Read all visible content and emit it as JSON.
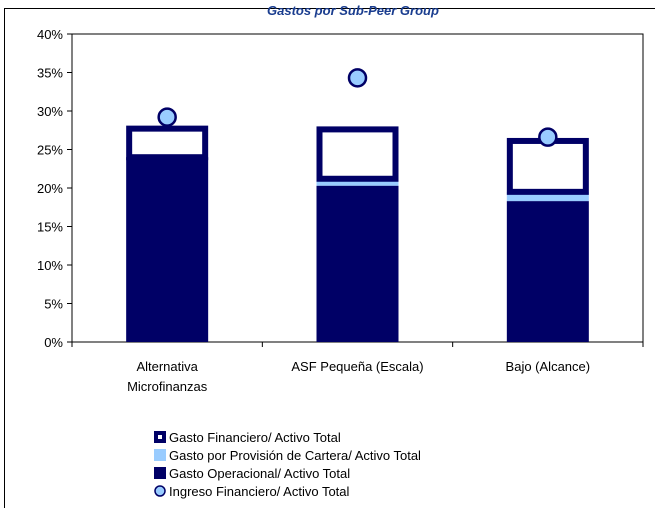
{
  "header": {
    "title": "Gastos por Sub-Peer Group"
  },
  "colors": {
    "gasto_operacional": "#000066",
    "gasto_provision": "#99ccff",
    "gasto_financiero_border": "#000066",
    "gasto_financiero_fill": "#ffffff",
    "ingreso_fill": "#99ccff",
    "ingreso_border": "#000066"
  },
  "chart_data": {
    "type": "bar",
    "stacked": true,
    "categories": [
      "Alternativa Microfinanzas",
      "ASF Pequeña (Escala)",
      "Bajo (Alcance)"
    ],
    "category_lines": [
      [
        "Alternativa",
        "Microfinanzas"
      ],
      [
        "ASF Pequeña (Escala)"
      ],
      [
        "Bajo (Alcance)"
      ]
    ],
    "series": [
      {
        "name": "Gasto Operacional/ Activo Total",
        "values": [
          24.0,
          20.3,
          18.3
        ]
      },
      {
        "name": "Gasto por Provisión de Cartera/ Activo Total",
        "values": [
          0.0,
          0.9,
          1.2
        ]
      },
      {
        "name": "Gasto Financiero/ Activo Total",
        "values": [
          4.1,
          6.8,
          7.0
        ]
      }
    ],
    "markers": {
      "name": "Ingreso Financiero/ Activo Total",
      "values": [
        29.2,
        34.3,
        26.6
      ]
    },
    "yticks": [
      "0%",
      "5%",
      "10%",
      "15%",
      "20%",
      "25%",
      "30%",
      "35%",
      "40%"
    ],
    "ylim": [
      0,
      40
    ],
    "legend": [
      "Gasto Financiero/ Activo Total",
      "Gasto por Provisión de Cartera/ Activo Total",
      "Gasto Operacional/ Activo Total",
      "Ingreso Financiero/ Activo Total"
    ],
    "legend_position": "bottom",
    "grid": false
  }
}
